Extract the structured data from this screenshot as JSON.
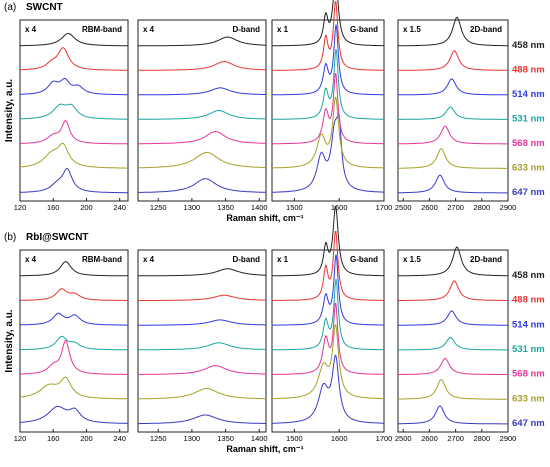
{
  "chart_data": {
    "type": "line",
    "ylabel": "Intensity, a.u.",
    "xlabel": "Raman shift, cm⁻¹",
    "legend_placement": "right",
    "wavelengths": [
      {
        "label": "647 nm",
        "color": "#3a3ac8"
      },
      {
        "label": "633 nm",
        "color": "#a6a02a"
      },
      {
        "label": "568 nm",
        "color": "#e0369a"
      },
      {
        "label": "531 nm",
        "color": "#1aa6a0"
      },
      {
        "label": "514 nm",
        "color": "#2f3ae0"
      },
      {
        "label": "488 nm",
        "color": "#e8352f"
      },
      {
        "label": "458 nm",
        "color": "#222222"
      }
    ],
    "regions": [
      {
        "title": "RBM-band",
        "scale": "x 4",
        "xlim": [
          120,
          250
        ],
        "ticks": [
          120,
          160,
          200,
          240
        ]
      },
      {
        "title": "D-band",
        "scale": "x 4",
        "xlim": [
          1220,
          1410
        ],
        "ticks": [
          1250,
          1300,
          1350,
          1400
        ]
      },
      {
        "title": "G-band",
        "scale": "x 1",
        "xlim": [
          1450,
          1700
        ],
        "ticks": [
          1500,
          1600,
          1700
        ]
      },
      {
        "title": "2D-band",
        "scale": "x 1.5",
        "xlim": [
          2480,
          2900
        ],
        "ticks": [
          2500,
          2600,
          2700,
          2800,
          2900
        ]
      }
    ],
    "panels": [
      {
        "label": "(a)",
        "sample": "SWCNT",
        "peaks": [
          [
            [
              [
                165,
                10,
                0.2
              ],
              [
                177,
                7,
                0.6
              ]
            ],
            [
              [
                158,
                12,
                0.35
              ],
              [
                172,
                8,
                0.55
              ]
            ],
            [
              [
                160,
                9,
                0.2
              ],
              [
                175,
                6,
                0.6
              ]
            ],
            [
              [
                168,
                10,
                0.35
              ],
              [
                182,
                8,
                0.3
              ]
            ],
            [
              [
                160,
                8,
                0.3
              ],
              [
                174,
                7,
                0.35
              ],
              [
                190,
                8,
                0.2
              ]
            ],
            [
              [
                172,
                8,
                0.6
              ],
              [
                158,
                8,
                0.15
              ]
            ],
            [
              [
                178,
                10,
                0.35
              ]
            ]
          ],
          [
            [
              [
                1320,
                20,
                0.4
              ]
            ],
            [
              [
                1322,
                22,
                0.45
              ]
            ],
            [
              [
                1335,
                18,
                0.35
              ]
            ],
            [
              [
                1340,
                18,
                0.25
              ]
            ],
            [
              [
                1342,
                18,
                0.2
              ]
            ],
            [
              [
                1348,
                18,
                0.25
              ]
            ],
            [
              [
                1353,
                18,
                0.25
              ]
            ]
          ],
          [
            [
              [
                1560,
                12,
                0.5
              ],
              [
                1590,
                10,
                0.8
              ],
              [
                1600,
                6,
                0.7
              ]
            ],
            [
              [
                1560,
                12,
                0.45
              ],
              [
                1592,
                8,
                1.0
              ]
            ],
            [
              [
                1570,
                8,
                0.45
              ],
              [
                1592,
                6,
                1.0
              ]
            ],
            [
              [
                1570,
                7,
                0.4
              ],
              [
                1593,
                6,
                1.0
              ]
            ],
            [
              [
                1570,
                7,
                0.4
              ],
              [
                1593,
                6,
                1.0
              ]
            ],
            [
              [
                1570,
                6,
                0.45
              ],
              [
                1592,
                6,
                1.0
              ]
            ],
            [
              [
                1570,
                6,
                0.4
              ],
              [
                1592,
                7,
                1.0
              ]
            ]
          ],
          [
            [
              [
                2640,
                20,
                0.5
              ]
            ],
            [
              [
                2645,
                20,
                0.55
              ]
            ],
            [
              [
                2660,
                20,
                0.5
              ]
            ],
            [
              [
                2680,
                20,
                0.35
              ]
            ],
            [
              [
                2685,
                20,
                0.45
              ]
            ],
            [
              [
                2695,
                20,
                0.55
              ]
            ],
            [
              [
                2705,
                20,
                0.8
              ]
            ]
          ]
        ]
      },
      {
        "label": "(b)",
        "sample": "RbI@SWCNT",
        "peaks": [
          [
            [
              [
                165,
                14,
                0.45
              ],
              [
                186,
                8,
                0.3
              ]
            ],
            [
              [
                155,
                14,
                0.35
              ],
              [
                175,
                8,
                0.5
              ]
            ],
            [
              [
                175,
                6,
                0.9
              ],
              [
                160,
                8,
                0.2
              ]
            ],
            [
              [
                170,
                8,
                0.35
              ],
              [
                186,
                8,
                0.15
              ]
            ],
            [
              [
                166,
                8,
                0.3
              ],
              [
                186,
                8,
                0.25
              ]
            ],
            [
              [
                170,
                8,
                0.3
              ],
              [
                186,
                8,
                0.15
              ]
            ],
            [
              [
                175,
                8,
                0.4
              ]
            ]
          ],
          [
            [
              [
                1320,
                22,
                0.25
              ]
            ],
            [
              [
                1322,
                22,
                0.3
              ]
            ],
            [
              [
                1335,
                20,
                0.25
              ]
            ],
            [
              [
                1340,
                20,
                0.2
              ]
            ],
            [
              [
                1342,
                20,
                0.15
              ]
            ],
            [
              [
                1348,
                20,
                0.15
              ]
            ],
            [
              [
                1353,
                20,
                0.2
              ]
            ]
          ],
          [
            [
              [
                1565,
                14,
                0.5
              ],
              [
                1592,
                9,
                0.9
              ]
            ],
            [
              [
                1565,
                14,
                0.45
              ],
              [
                1592,
                8,
                1.0
              ]
            ],
            [
              [
                1570,
                8,
                0.5
              ],
              [
                1592,
                6,
                1.0
              ]
            ],
            [
              [
                1570,
                7,
                0.4
              ],
              [
                1593,
                6,
                1.0
              ]
            ],
            [
              [
                1570,
                7,
                0.4
              ],
              [
                1593,
                6,
                1.0
              ]
            ],
            [
              [
                1570,
                6,
                0.45
              ],
              [
                1592,
                6,
                1.0
              ]
            ],
            [
              [
                1570,
                6,
                0.4
              ],
              [
                1592,
                7,
                1.0
              ]
            ]
          ],
          [
            [
              [
                2640,
                20,
                0.5
              ]
            ],
            [
              [
                2645,
                20,
                0.55
              ]
            ],
            [
              [
                2660,
                20,
                0.45
              ]
            ],
            [
              [
                2680,
                20,
                0.35
              ]
            ],
            [
              [
                2685,
                20,
                0.4
              ]
            ],
            [
              [
                2695,
                20,
                0.55
              ]
            ],
            [
              [
                2705,
                20,
                0.8
              ]
            ]
          ]
        ]
      }
    ]
  }
}
